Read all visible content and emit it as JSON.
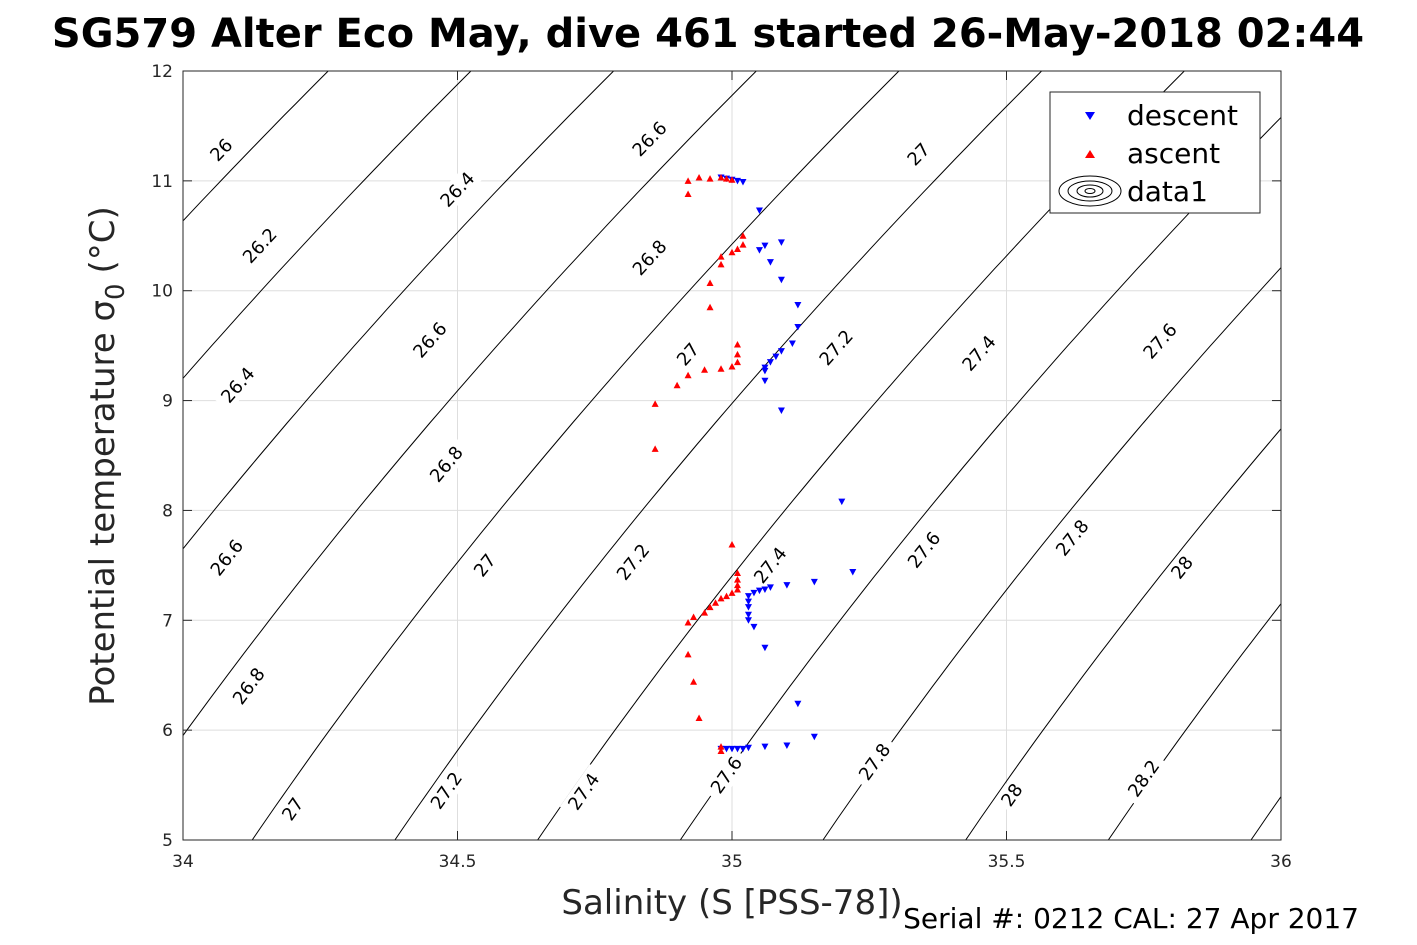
{
  "title": "SG579 Alter Eco May, dive 461 started 26-May-2018 02:44",
  "footer": "Serial #: 0212  CAL: 27 Apr 2017",
  "chart_data": {
    "type": "scatter",
    "xlabel": "Salinity (S [PSS-78])",
    "ylabel": "Potential temperature σ",
    "ylabel_subscript": "0",
    "ylabel_unit": "(°C)",
    "xlim": [
      34,
      36
    ],
    "ylim": [
      5,
      12
    ],
    "xticks": [
      "34",
      "34.5",
      "35",
      "35.5",
      "36"
    ],
    "yticks": [
      "5",
      "6",
      "7",
      "8",
      "9",
      "10",
      "11",
      "12"
    ],
    "grid": true,
    "legend": {
      "placement": "top-right",
      "entries": [
        "descent",
        "ascent",
        "data1"
      ]
    },
    "contours": {
      "levels": [
        26,
        26.2,
        26.4,
        26.6,
        26.8,
        27,
        27.2,
        27.4,
        27.6,
        27.8,
        28,
        28.2
      ],
      "labels": [
        {
          "text": "26",
          "s": 34.07,
          "t": 11.28
        },
        {
          "text": "26.2",
          "s": 34.14,
          "t": 10.41
        },
        {
          "text": "26.4",
          "s": 34.5,
          "t": 10.92
        },
        {
          "text": "26.4",
          "s": 34.1,
          "t": 9.14
        },
        {
          "text": "26.6",
          "s": 34.45,
          "t": 9.55
        },
        {
          "text": "26.6",
          "s": 34.85,
          "t": 11.38
        },
        {
          "text": "26.6",
          "s": 34.08,
          "t": 7.57
        },
        {
          "text": "26.8",
          "s": 34.85,
          "t": 10.3
        },
        {
          "text": "26.8",
          "s": 34.48,
          "t": 8.42
        },
        {
          "text": "26.8",
          "s": 34.12,
          "t": 6.4
        },
        {
          "text": "27",
          "s": 34.92,
          "t": 9.42
        },
        {
          "text": "27",
          "s": 34.55,
          "t": 7.5
        },
        {
          "text": "27",
          "s": 34.2,
          "t": 5.28
        },
        {
          "text": "27",
          "s": 35.34,
          "t": 11.24
        },
        {
          "text": "27.2",
          "s": 35.19,
          "t": 9.48
        },
        {
          "text": "27.2",
          "s": 34.82,
          "t": 7.53
        },
        {
          "text": "27.2",
          "s": 34.48,
          "t": 5.45
        },
        {
          "text": "27.4",
          "s": 35.45,
          "t": 9.43
        },
        {
          "text": "27.4",
          "s": 35.07,
          "t": 7.5
        },
        {
          "text": "27.4",
          "s": 34.73,
          "t": 5.44
        },
        {
          "text": "27.6",
          "s": 35.78,
          "t": 9.54
        },
        {
          "text": "27.6",
          "s": 35.35,
          "t": 7.64
        },
        {
          "text": "27.6",
          "s": 34.99,
          "t": 5.59
        },
        {
          "text": "27.8",
          "s": 35.62,
          "t": 7.75
        },
        {
          "text": "27.8",
          "s": 35.26,
          "t": 5.71
        },
        {
          "text": "28",
          "s": 35.82,
          "t": 7.48
        },
        {
          "text": "28",
          "s": 35.51,
          "t": 5.41
        },
        {
          "text": "28.2",
          "s": 35.75,
          "t": 5.56
        }
      ]
    },
    "series": [
      {
        "name": "descent",
        "color": "#0000ff",
        "marker": "triangle-down",
        "points": [
          [
            34.98,
            11.03
          ],
          [
            34.99,
            11.02
          ],
          [
            35.0,
            11.01
          ],
          [
            35.01,
            11.0
          ],
          [
            35.02,
            10.99
          ],
          [
            35.05,
            10.73
          ],
          [
            35.09,
            10.44
          ],
          [
            35.06,
            10.41
          ],
          [
            35.05,
            10.37
          ],
          [
            35.07,
            10.26
          ],
          [
            35.09,
            10.1
          ],
          [
            35.12,
            9.87
          ],
          [
            35.12,
            9.67
          ],
          [
            35.11,
            9.52
          ],
          [
            35.09,
            9.45
          ],
          [
            35.08,
            9.4
          ],
          [
            35.07,
            9.35
          ],
          [
            35.06,
            9.3
          ],
          [
            35.06,
            9.27
          ],
          [
            35.06,
            9.18
          ],
          [
            35.09,
            8.91
          ],
          [
            35.2,
            8.08
          ],
          [
            35.22,
            7.44
          ],
          [
            35.15,
            7.35
          ],
          [
            35.1,
            7.32
          ],
          [
            35.07,
            7.3
          ],
          [
            35.06,
            7.28
          ],
          [
            35.05,
            7.27
          ],
          [
            35.04,
            7.25
          ],
          [
            35.03,
            7.22
          ],
          [
            35.03,
            7.17
          ],
          [
            35.03,
            7.12
          ],
          [
            35.03,
            7.05
          ],
          [
            35.03,
            7.0
          ],
          [
            35.04,
            6.94
          ],
          [
            35.06,
            6.75
          ],
          [
            35.12,
            6.24
          ],
          [
            35.15,
            5.94
          ],
          [
            35.1,
            5.86
          ],
          [
            35.06,
            5.85
          ],
          [
            35.03,
            5.84
          ],
          [
            35.02,
            5.83
          ],
          [
            35.01,
            5.83
          ],
          [
            35.0,
            5.83
          ],
          [
            34.99,
            5.83
          ],
          [
            34.98,
            5.83
          ]
        ]
      },
      {
        "name": "ascent",
        "color": "#ff0000",
        "marker": "triangle-up",
        "points": [
          [
            34.86,
            8.56
          ],
          [
            34.86,
            8.97
          ],
          [
            34.9,
            9.14
          ],
          [
            34.92,
            9.23
          ],
          [
            34.95,
            9.28
          ],
          [
            34.98,
            9.29
          ],
          [
            35.0,
            9.31
          ],
          [
            35.01,
            9.35
          ],
          [
            35.01,
            9.42
          ],
          [
            35.01,
            9.51
          ],
          [
            34.96,
            9.85
          ],
          [
            34.96,
            10.07
          ],
          [
            34.98,
            10.24
          ],
          [
            34.98,
            10.31
          ],
          [
            35.0,
            10.35
          ],
          [
            35.01,
            10.38
          ],
          [
            35.02,
            10.42
          ],
          [
            35.02,
            10.5
          ],
          [
            34.92,
            10.88
          ],
          [
            34.92,
            11.0
          ],
          [
            34.94,
            11.03
          ],
          [
            34.96,
            11.02
          ],
          [
            34.98,
            11.03
          ],
          [
            34.99,
            11.02
          ],
          [
            35.0,
            11.01
          ],
          [
            35.0,
            7.69
          ],
          [
            35.01,
            7.43
          ],
          [
            35.01,
            7.37
          ],
          [
            35.01,
            7.32
          ],
          [
            35.01,
            7.28
          ],
          [
            35.0,
            7.25
          ],
          [
            34.99,
            7.22
          ],
          [
            34.98,
            7.2
          ],
          [
            34.97,
            7.16
          ],
          [
            34.96,
            7.12
          ],
          [
            34.95,
            7.07
          ],
          [
            34.93,
            7.03
          ],
          [
            34.92,
            6.98
          ],
          [
            34.92,
            6.69
          ],
          [
            34.93,
            6.44
          ],
          [
            34.94,
            6.11
          ],
          [
            34.98,
            5.85
          ],
          [
            34.98,
            5.81
          ]
        ]
      }
    ]
  }
}
